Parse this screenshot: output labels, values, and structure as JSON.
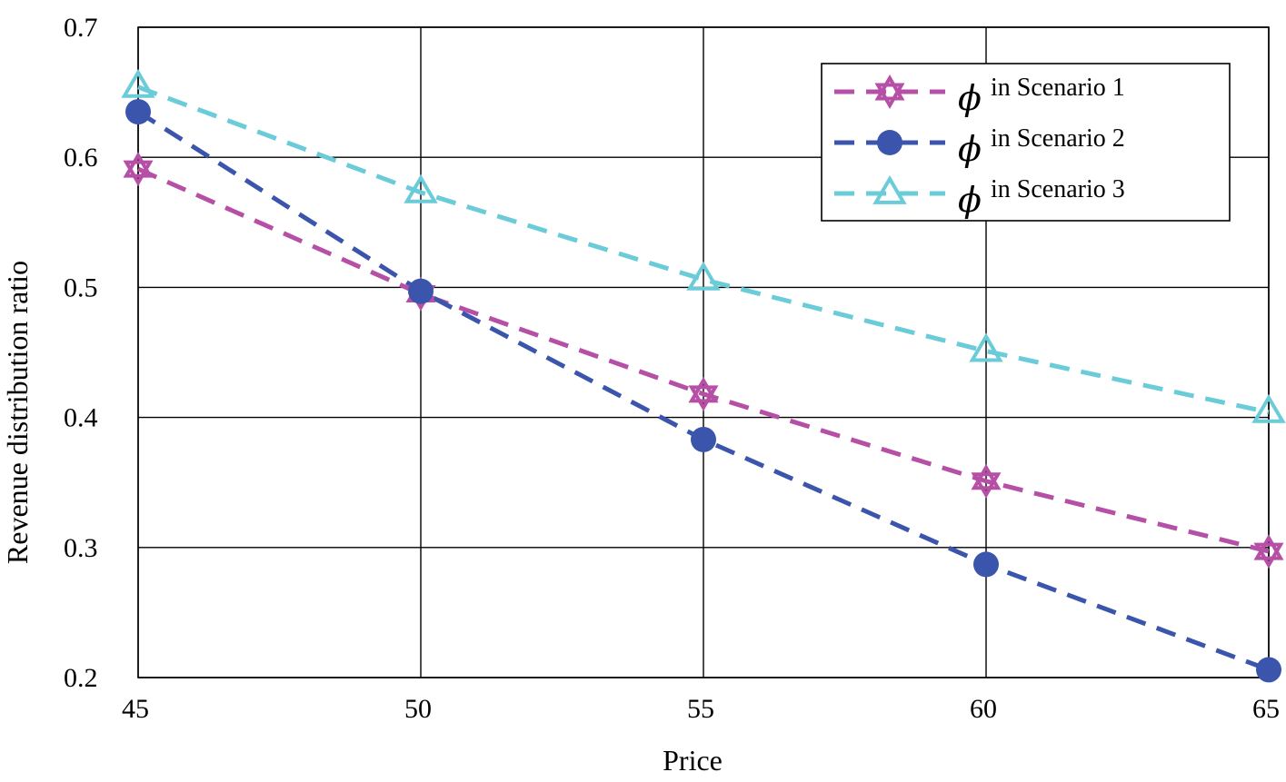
{
  "chart_data": {
    "type": "line",
    "title": "",
    "xlabel": "Price",
    "ylabel": "Revenue distribution ratio",
    "x": [
      45,
      50,
      55,
      60,
      65
    ],
    "xticks": [
      45,
      50,
      55,
      60,
      65
    ],
    "yticks": [
      "0.2",
      "0.3",
      "0.4",
      "0.5",
      "0.6",
      "0.7"
    ],
    "xlim": [
      45,
      65
    ],
    "ylim": [
      0.2,
      0.7
    ],
    "grid": true,
    "legend_position": "top-right",
    "series": [
      {
        "name": "ϕ",
        "name_suffix": "in Scenario 1",
        "color": "#b64fa6",
        "marker": "star",
        "values": [
          0.591,
          0.495,
          0.418,
          0.351,
          0.297
        ]
      },
      {
        "name": "ϕ",
        "name_suffix": "in Scenario 2",
        "color": "#3b55ad",
        "marker": "circle",
        "values": [
          0.635,
          0.497,
          0.383,
          0.287,
          0.206
        ]
      },
      {
        "name": "ϕ",
        "name_suffix": "in Scenario 3",
        "color": "#6acbd9",
        "marker": "triangle",
        "values": [
          0.654,
          0.573,
          0.506,
          0.451,
          0.404
        ]
      }
    ]
  }
}
